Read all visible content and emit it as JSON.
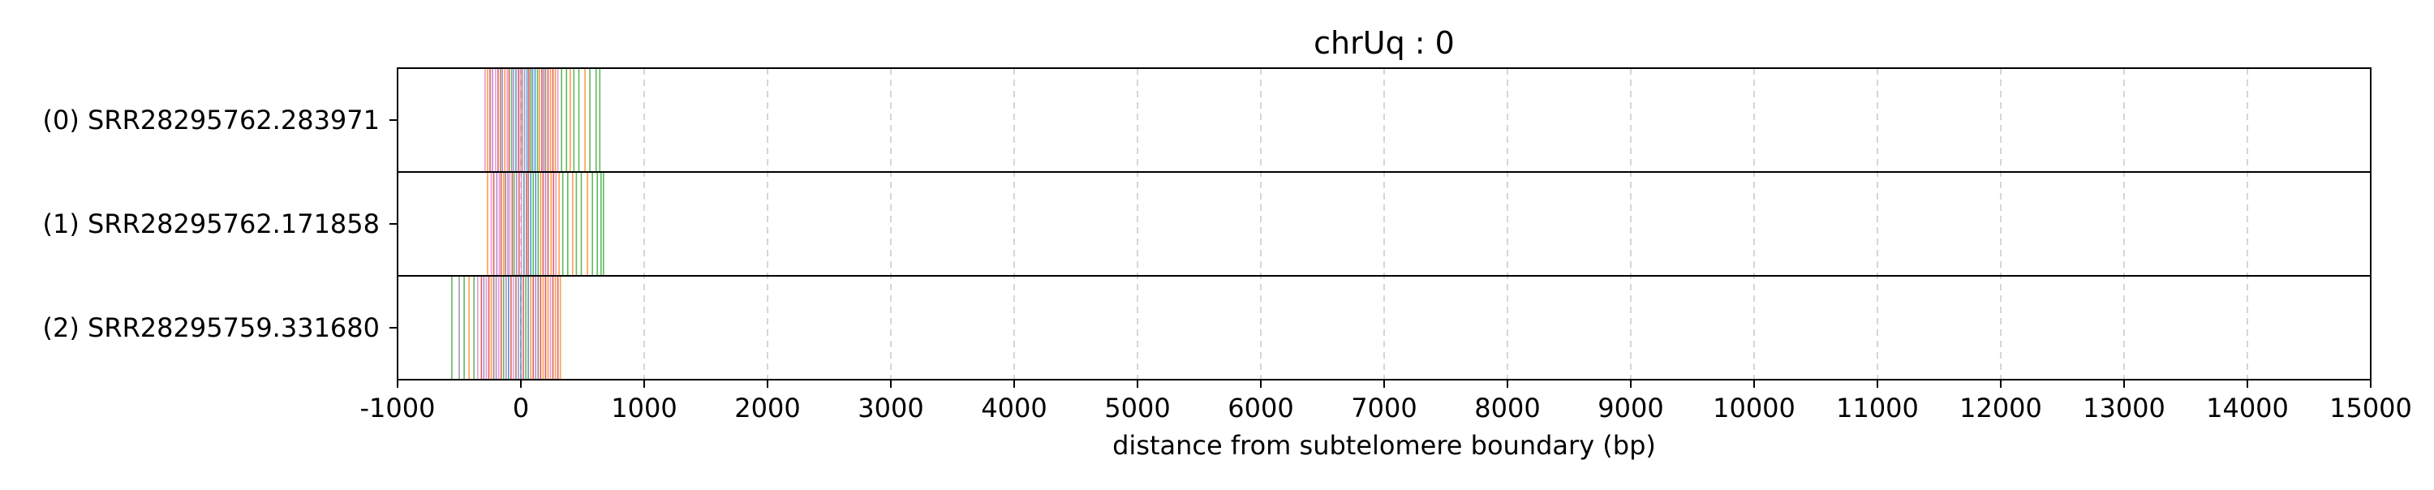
{
  "chart_data": {
    "type": "event-plot",
    "title": "chrUq : 0",
    "xlabel": "distance from subtelomere boundary (bp)",
    "ylabel": "",
    "xlim": [
      -1000,
      15000
    ],
    "xticks": [
      -1000,
      0,
      1000,
      2000,
      3000,
      4000,
      5000,
      6000,
      7000,
      8000,
      9000,
      10000,
      11000,
      12000,
      13000,
      14000,
      15000
    ],
    "grid": "vertical dashed",
    "colors": {
      "green": "#2ca02c",
      "orange": "#ff7f0e",
      "red": "#d62728",
      "purple": "#9467bd",
      "pink": "#e377c2",
      "blue": "#1f77b4",
      "brown": "#8c564b",
      "gray": "#7f7f7f"
    },
    "reads": [
      {
        "label": "(0) SRR28295762.283971",
        "marks": [
          {
            "x": -290,
            "c": "pink"
          },
          {
            "x": -270,
            "c": "orange"
          },
          {
            "x": -250,
            "c": "red"
          },
          {
            "x": -230,
            "c": "purple"
          },
          {
            "x": -205,
            "c": "pink"
          },
          {
            "x": -185,
            "c": "red"
          },
          {
            "x": -165,
            "c": "brown"
          },
          {
            "x": -150,
            "c": "purple"
          },
          {
            "x": -130,
            "c": "orange"
          },
          {
            "x": -110,
            "c": "pink"
          },
          {
            "x": -95,
            "c": "red"
          },
          {
            "x": -75,
            "c": "green"
          },
          {
            "x": -60,
            "c": "purple"
          },
          {
            "x": -40,
            "c": "blue"
          },
          {
            "x": -20,
            "c": "red"
          },
          {
            "x": -5,
            "c": "pink"
          },
          {
            "x": 10,
            "c": "brown"
          },
          {
            "x": 30,
            "c": "purple"
          },
          {
            "x": 50,
            "c": "blue"
          },
          {
            "x": 65,
            "c": "red"
          },
          {
            "x": 80,
            "c": "green"
          },
          {
            "x": 95,
            "c": "blue"
          },
          {
            "x": 115,
            "c": "blue"
          },
          {
            "x": 135,
            "c": "green"
          },
          {
            "x": 150,
            "c": "orange"
          },
          {
            "x": 170,
            "c": "red"
          },
          {
            "x": 185,
            "c": "purple"
          },
          {
            "x": 200,
            "c": "brown"
          },
          {
            "x": 220,
            "c": "red"
          },
          {
            "x": 240,
            "c": "orange"
          },
          {
            "x": 260,
            "c": "red"
          },
          {
            "x": 280,
            "c": "orange"
          },
          {
            "x": 300,
            "c": "pink"
          },
          {
            "x": 330,
            "c": "green"
          },
          {
            "x": 370,
            "c": "green"
          },
          {
            "x": 400,
            "c": "orange"
          },
          {
            "x": 430,
            "c": "green"
          },
          {
            "x": 470,
            "c": "green"
          },
          {
            "x": 520,
            "c": "orange"
          },
          {
            "x": 560,
            "c": "green"
          },
          {
            "x": 610,
            "c": "green"
          },
          {
            "x": 640,
            "c": "green"
          }
        ]
      },
      {
        "label": "(1) SRR28295762.171858",
        "marks": [
          {
            "x": -270,
            "c": "orange"
          },
          {
            "x": -240,
            "c": "pink"
          },
          {
            "x": -220,
            "c": "red"
          },
          {
            "x": -195,
            "c": "purple"
          },
          {
            "x": -175,
            "c": "pink"
          },
          {
            "x": -160,
            "c": "red"
          },
          {
            "x": -140,
            "c": "orange"
          },
          {
            "x": -125,
            "c": "brown"
          },
          {
            "x": -105,
            "c": "purple"
          },
          {
            "x": -90,
            "c": "pink"
          },
          {
            "x": -70,
            "c": "red"
          },
          {
            "x": -55,
            "c": "green"
          },
          {
            "x": -35,
            "c": "purple"
          },
          {
            "x": -15,
            "c": "red"
          },
          {
            "x": 5,
            "c": "pink"
          },
          {
            "x": 25,
            "c": "blue"
          },
          {
            "x": 45,
            "c": "red"
          },
          {
            "x": 60,
            "c": "brown"
          },
          {
            "x": 80,
            "c": "blue"
          },
          {
            "x": 100,
            "c": "green"
          },
          {
            "x": 120,
            "c": "blue"
          },
          {
            "x": 140,
            "c": "green"
          },
          {
            "x": 160,
            "c": "orange"
          },
          {
            "x": 180,
            "c": "red"
          },
          {
            "x": 200,
            "c": "purple"
          },
          {
            "x": 220,
            "c": "red"
          },
          {
            "x": 245,
            "c": "orange"
          },
          {
            "x": 265,
            "c": "red"
          },
          {
            "x": 285,
            "c": "pink"
          },
          {
            "x": 310,
            "c": "orange"
          },
          {
            "x": 340,
            "c": "green"
          },
          {
            "x": 380,
            "c": "green"
          },
          {
            "x": 420,
            "c": "orange"
          },
          {
            "x": 450,
            "c": "green"
          },
          {
            "x": 490,
            "c": "green"
          },
          {
            "x": 540,
            "c": "orange"
          },
          {
            "x": 580,
            "c": "green"
          },
          {
            "x": 620,
            "c": "green"
          },
          {
            "x": 650,
            "c": "green"
          },
          {
            "x": 670,
            "c": "green"
          }
        ]
      },
      {
        "label": "(2) SRR28295759.331680",
        "marks": [
          {
            "x": -560,
            "c": "green"
          },
          {
            "x": -500,
            "c": "gray"
          },
          {
            "x": -460,
            "c": "green"
          },
          {
            "x": -420,
            "c": "orange"
          },
          {
            "x": -380,
            "c": "green"
          },
          {
            "x": -350,
            "c": "pink"
          },
          {
            "x": -320,
            "c": "red"
          },
          {
            "x": -300,
            "c": "purple"
          },
          {
            "x": -280,
            "c": "pink"
          },
          {
            "x": -260,
            "c": "red"
          },
          {
            "x": -240,
            "c": "orange"
          },
          {
            "x": -220,
            "c": "brown"
          },
          {
            "x": -200,
            "c": "purple"
          },
          {
            "x": -180,
            "c": "pink"
          },
          {
            "x": -160,
            "c": "red"
          },
          {
            "x": -140,
            "c": "green"
          },
          {
            "x": -120,
            "c": "purple"
          },
          {
            "x": -100,
            "c": "blue"
          },
          {
            "x": -80,
            "c": "red"
          },
          {
            "x": -60,
            "c": "pink"
          },
          {
            "x": -40,
            "c": "brown"
          },
          {
            "x": -20,
            "c": "purple"
          },
          {
            "x": 0,
            "c": "blue"
          },
          {
            "x": 20,
            "c": "red"
          },
          {
            "x": 40,
            "c": "green"
          },
          {
            "x": 60,
            "c": "blue"
          },
          {
            "x": 80,
            "c": "orange"
          },
          {
            "x": 100,
            "c": "red"
          },
          {
            "x": 120,
            "c": "purple"
          },
          {
            "x": 140,
            "c": "brown"
          },
          {
            "x": 160,
            "c": "red"
          },
          {
            "x": 180,
            "c": "orange"
          },
          {
            "x": 200,
            "c": "red"
          },
          {
            "x": 220,
            "c": "orange"
          },
          {
            "x": 240,
            "c": "pink"
          },
          {
            "x": 260,
            "c": "red"
          },
          {
            "x": 280,
            "c": "orange"
          },
          {
            "x": 300,
            "c": "red"
          },
          {
            "x": 320,
            "c": "orange"
          }
        ]
      }
    ]
  }
}
